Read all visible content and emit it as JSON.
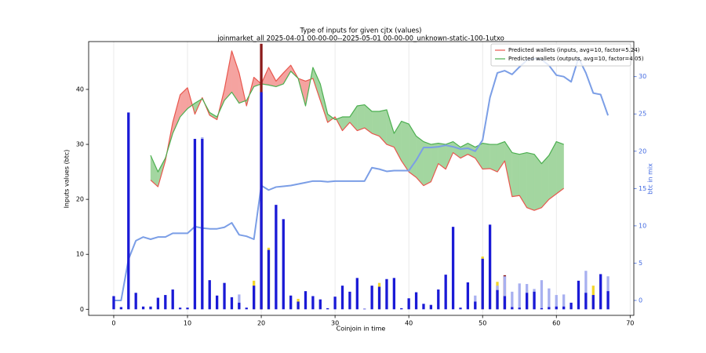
{
  "chart_data": {
    "type": "combo",
    "title": "Type of inputs for given cjtx (values)",
    "subtitle": "joinmarket_all 2025-04-01 00-00-00--2025-05-01 00-00-00_unknown-static-100-1utxo",
    "x_label": "Coinjoin in time",
    "y_label": "Inputs values (btc)",
    "y2_label": "btc in mix",
    "y2_color": "#4169e1",
    "xlim": [
      -3.4,
      70.5
    ],
    "ylim": [
      -1.1,
      48.7
    ],
    "y2lim": [
      -2,
      34.7
    ],
    "xticks": [
      0,
      10,
      20,
      30,
      40,
      50,
      60,
      70
    ],
    "yticks": [
      0,
      10,
      20,
      30,
      40
    ],
    "y2ticks": [
      0,
      5,
      10,
      15,
      20,
      25,
      30
    ],
    "grid": true,
    "legend": "upper right",
    "x": [
      0,
      1,
      2,
      3,
      4,
      5,
      6,
      7,
      8,
      9,
      10,
      11,
      12,
      13,
      14,
      15,
      16,
      17,
      18,
      19,
      20,
      21,
      22,
      23,
      24,
      25,
      26,
      27,
      28,
      29,
      30,
      31,
      32,
      33,
      34,
      35,
      36,
      37,
      38,
      39,
      40,
      41,
      42,
      43,
      44,
      45,
      46,
      47,
      48,
      49,
      50,
      51,
      52,
      53,
      54,
      55,
      56,
      57,
      58,
      59,
      60,
      61,
      62,
      63,
      64,
      65,
      66,
      67
    ],
    "series": [
      {
        "type": "line",
        "name": "Predicted wallets (inputs, avg=10, factor=5.24)",
        "color": "#e8574e",
        "fill_color": "#f5a3a0",
        "x": [
          5,
          6,
          7,
          8,
          9,
          10,
          11,
          12,
          13,
          14,
          15,
          16,
          17,
          18,
          19,
          20,
          21,
          22,
          23,
          24,
          25,
          26,
          27,
          28,
          29,
          30,
          31,
          32,
          33,
          34,
          35,
          36,
          37,
          38,
          39,
          40,
          41,
          42,
          43,
          44,
          45,
          46,
          47,
          48,
          49,
          50,
          51,
          52,
          53,
          54,
          55,
          56,
          57,
          58,
          59,
          60,
          61
        ],
        "values": [
          23.5,
          22.3,
          27,
          34,
          39,
          40.3,
          35.5,
          38.5,
          35.3,
          34.5,
          40,
          47,
          43,
          37,
          42.2,
          41,
          44,
          41.5,
          43,
          44.4,
          42,
          41.5,
          42,
          38,
          34,
          35,
          32.5,
          34,
          32.5,
          33,
          32,
          31.5,
          30,
          29.5,
          27,
          25,
          24,
          22.5,
          23.2,
          26.5,
          25.5,
          28.5,
          27.5,
          28.2,
          27.5,
          25.5,
          25.6,
          25,
          27,
          20.5,
          20.7,
          18.5,
          18,
          18.5,
          20,
          21,
          22
        ]
      },
      {
        "type": "line",
        "name": "Predicted wallets (outputs, avg=10, factor=4.05)",
        "color": "#4caf50",
        "fill_color": "#a3d6a0",
        "x": [
          5,
          6,
          7,
          8,
          9,
          10,
          11,
          12,
          13,
          14,
          15,
          16,
          17,
          18,
          19,
          20,
          21,
          22,
          23,
          24,
          25,
          26,
          27,
          28,
          29,
          30,
          31,
          32,
          33,
          34,
          35,
          36,
          37,
          38,
          39,
          40,
          41,
          42,
          43,
          44,
          45,
          46,
          47,
          48,
          49,
          50,
          51,
          52,
          53,
          54,
          55,
          56,
          57,
          58,
          59,
          60,
          61
        ],
        "values": [
          28,
          25,
          27.5,
          32,
          35,
          36.5,
          37.5,
          38.3,
          35.8,
          35,
          38,
          39.5,
          37.5,
          38,
          40.5,
          41,
          40.8,
          40.5,
          41,
          43.3,
          42,
          37,
          44,
          41,
          35.5,
          34.5,
          35,
          35,
          37,
          37.2,
          36,
          36,
          36.3,
          32,
          34.2,
          33.7,
          31.5,
          30.5,
          30,
          30.2,
          30,
          30.5,
          29.5,
          30.2,
          29.5,
          30.2,
          30,
          30,
          30.5,
          28.5,
          28.2,
          28.5,
          28.2,
          26.5,
          28,
          30.5,
          30
        ]
      },
      {
        "type": "line",
        "axis": "y2",
        "color": "#7b9ee6",
        "values": [
          0,
          0,
          5.5,
          8,
          8.5,
          8.2,
          8.5,
          8.5,
          9,
          9,
          9,
          9.9,
          9.7,
          9.6,
          9.6,
          9.8,
          10.4,
          8.8,
          8.6,
          8.2,
          15.4,
          14.8,
          15.2,
          15.3,
          15.4,
          15.6,
          15.8,
          16,
          16,
          15.9,
          16,
          16,
          16,
          16,
          16,
          17.8,
          17.6,
          17.3,
          17.4,
          17.4,
          17.4,
          18.8,
          20.5,
          20.5,
          20.6,
          20.8,
          20.6,
          20.3,
          20.4,
          20,
          21.5,
          27.2,
          30.5,
          30.8,
          30.3,
          31.3,
          32.2,
          32.4,
          32.3,
          31.5,
          30.2,
          30,
          29.3,
          32.5,
          30.5,
          27.8,
          27.6,
          24.8
        ]
      },
      {
        "type": "bar",
        "color": "#8b1a1a",
        "values": [
          null,
          null,
          null,
          null,
          null,
          null,
          null,
          null,
          null,
          null,
          null,
          null,
          null,
          null,
          null,
          null,
          null,
          null,
          null,
          null,
          48.3,
          null,
          null,
          null,
          null,
          null,
          null,
          null,
          null,
          null,
          null,
          null,
          null,
          null,
          null,
          null,
          null,
          null,
          null,
          null,
          null,
          null,
          null,
          null,
          null,
          null,
          null,
          null,
          null,
          null,
          null,
          null,
          null,
          6.2,
          null,
          null,
          null,
          null,
          null,
          null,
          null,
          null,
          null,
          null,
          null,
          null,
          null,
          null
        ]
      },
      {
        "type": "bar",
        "color": "#f2d52a",
        "values": [
          null,
          null,
          null,
          null,
          null,
          null,
          null,
          null,
          null,
          null,
          null,
          null,
          null,
          null,
          null,
          null,
          null,
          null,
          null,
          5.2,
          null,
          11.2,
          null,
          null,
          null,
          1.9,
          null,
          null,
          null,
          null,
          null,
          null,
          null,
          null,
          null,
          null,
          4.8,
          null,
          null,
          null,
          null,
          null,
          null,
          null,
          null,
          null,
          null,
          null,
          null,
          null,
          9.6,
          null,
          5.0,
          null,
          null,
          null,
          3.5,
          null,
          null,
          null,
          null,
          null,
          null,
          null,
          null,
          4.3,
          null,
          null
        ]
      },
      {
        "type": "bar",
        "color": "#a8b0f0",
        "values": [
          null,
          null,
          null,
          null,
          null,
          null,
          null,
          null,
          null,
          null,
          null,
          null,
          31.3,
          null,
          null,
          null,
          null,
          2.7,
          null,
          null,
          null,
          null,
          null,
          null,
          null,
          null,
          null,
          null,
          null,
          null,
          null,
          null,
          null,
          null,
          null,
          null,
          null,
          null,
          null,
          null,
          null,
          null,
          null,
          null,
          null,
          null,
          null,
          null,
          null,
          2.5,
          null,
          null,
          4.3,
          6.0,
          3.2,
          4.7,
          4.6,
          3.7,
          5.3,
          3.8,
          2.6,
          2.7,
          null,
          null,
          7.0,
          null,
          null,
          6.0
        ]
      },
      {
        "type": "bar",
        "color": "#1a1ad6",
        "values": [
          2.4,
          0.4,
          35.8,
          3.0,
          0.5,
          0.5,
          2.1,
          2.6,
          3.6,
          0.3,
          0.3,
          31,
          31,
          5.3,
          2.5,
          4.8,
          2.2,
          1.2,
          0.3,
          4.3,
          39.5,
          10.8,
          19.0,
          16.4,
          2.5,
          1.4,
          3.3,
          2.4,
          1.8,
          0.2,
          2.3,
          4.3,
          3.2,
          5.7,
          0.1,
          4.3,
          4.1,
          5.5,
          5.7,
          0.2,
          2.0,
          3.1,
          1.0,
          0.8,
          3.6,
          6.3,
          15.0,
          0.3,
          4.9,
          1.4,
          9.2,
          15.4,
          3.5,
          2.4,
          0.4,
          0.3,
          3.0,
          3.2,
          0.2,
          0.4,
          0.5,
          0.5,
          1.2,
          5.2,
          3.0,
          2.6,
          6.4,
          3.3
        ]
      }
    ]
  }
}
